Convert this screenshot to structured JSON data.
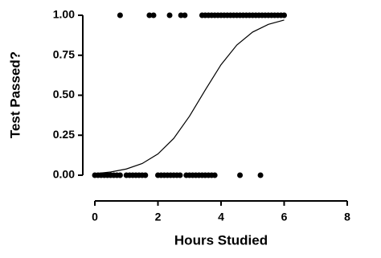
{
  "chart_data": {
    "type": "scatter",
    "x_label": "Hours Studied",
    "y_label": "Test Passed?",
    "color": "#000000",
    "x": [
      0.8,
      1.73,
      1.86,
      2.37,
      2.73,
      2.85,
      3.4,
      3.5,
      3.6,
      3.7,
      3.8,
      3.9,
      4.0,
      4.1,
      4.2,
      4.3,
      4.4,
      4.5,
      4.6,
      4.7,
      4.8,
      4.9,
      5.0,
      5.1,
      5.2,
      5.3,
      5.4,
      5.5,
      5.6,
      5.7,
      5.8,
      5.9,
      6.0,
      0,
      0.1,
      0.2,
      0.3,
      0.4,
      0.5,
      0.6,
      0.7,
      0.8,
      1.0,
      1.1,
      1.2,
      1.3,
      1.4,
      1.5,
      1.6,
      2.0,
      2.1,
      2.2,
      2.3,
      2.4,
      2.5,
      2.6,
      2.7,
      2.9,
      3.0,
      3.1,
      3.2,
      3.3,
      3.4,
      3.5,
      3.6,
      3.7,
      3.8,
      4.6,
      5.25
    ],
    "values": [
      1,
      1,
      1,
      1,
      1,
      1,
      1,
      1,
      1,
      1,
      1,
      1,
      1,
      1,
      1,
      1,
      1,
      1,
      1,
      1,
      1,
      1,
      1,
      1,
      1,
      1,
      1,
      1,
      1,
      1,
      1,
      1,
      1,
      0,
      0,
      0,
      0,
      0,
      0,
      0,
      0,
      0,
      0,
      0,
      0,
      0,
      0,
      0,
      0,
      0,
      0,
      0,
      0,
      0,
      0,
      0,
      0,
      0,
      0,
      0,
      0,
      0,
      0,
      0,
      0,
      0,
      0,
      0,
      0
    ],
    "curve_x": [
      0,
      0.5,
      1,
      1.5,
      2,
      2.5,
      3,
      3.5,
      4,
      4.5,
      5,
      5.5,
      6
    ],
    "curve_values": [
      0.01,
      0.02,
      0.039,
      0.073,
      0.133,
      0.23,
      0.369,
      0.533,
      0.691,
      0.814,
      0.895,
      0.943,
      0.97
    ],
    "xlim": [
      0,
      8
    ],
    "xticks": [
      0,
      2,
      4,
      6,
      8
    ],
    "ylim": [
      0,
      1
    ],
    "yticks": [
      {
        "value": 0,
        "label": "0.00"
      },
      {
        "value": 0.25,
        "label": "0.25"
      },
      {
        "value": 0.5,
        "label": "0.50"
      },
      {
        "value": 0.75,
        "label": "0.75"
      },
      {
        "value": 1,
        "label": "1.00"
      }
    ]
  }
}
